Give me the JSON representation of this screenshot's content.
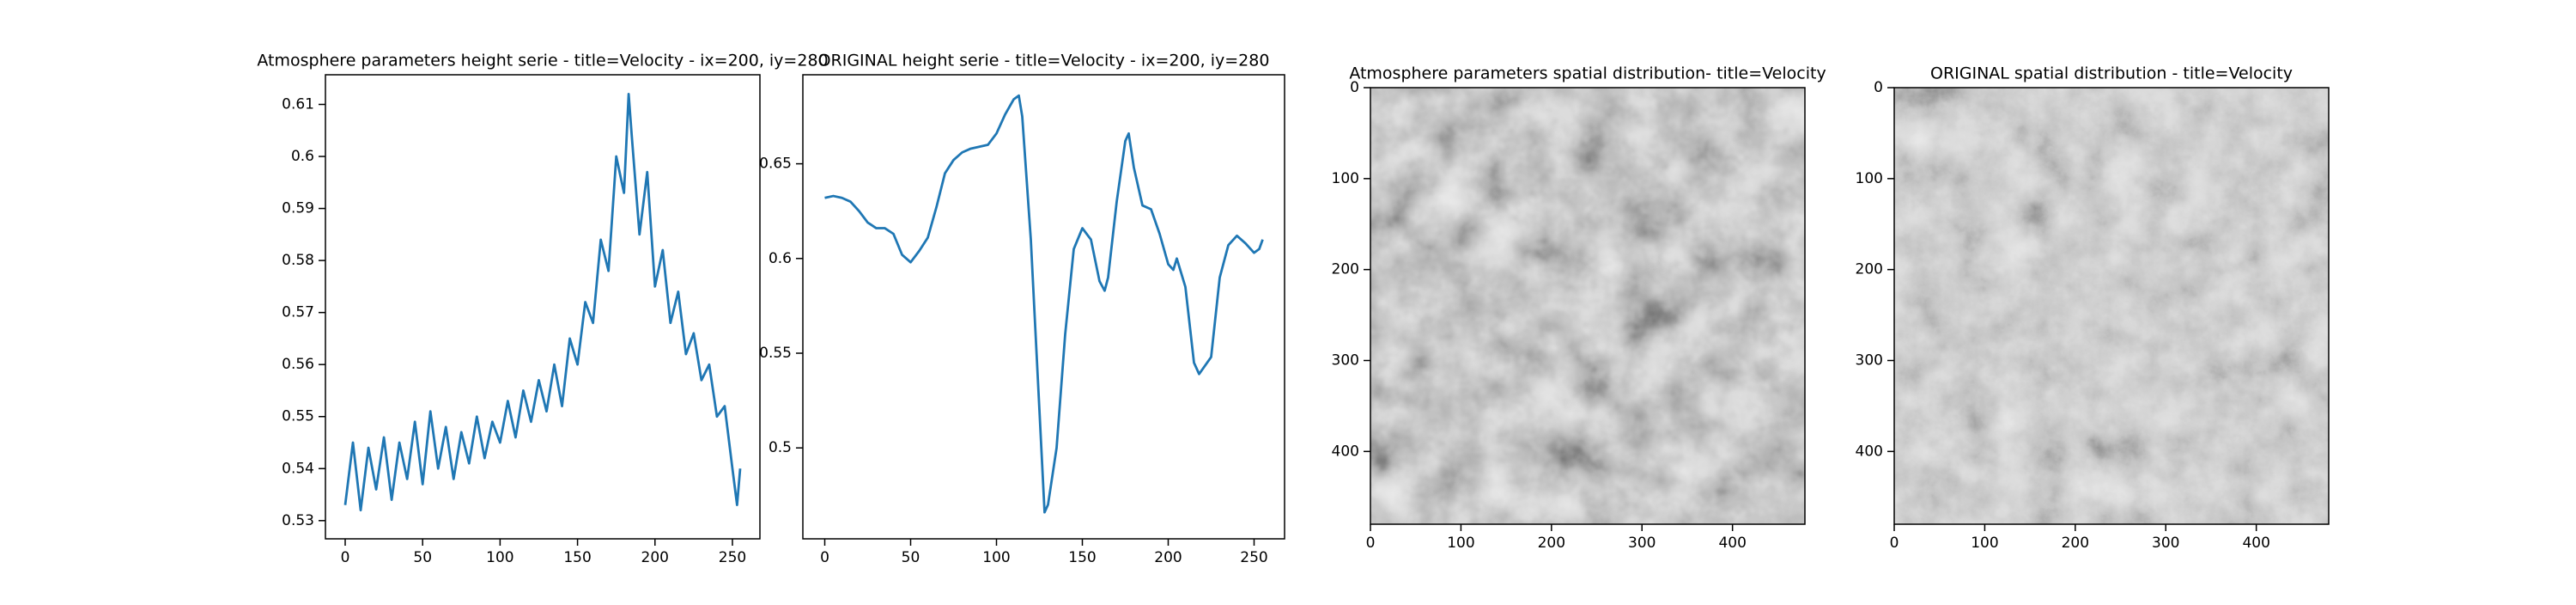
{
  "chart_data": [
    {
      "type": "line",
      "title": "Atmosphere parameters height serie - title=Velocity - ix=200, iy=280",
      "color": "#1f77b4",
      "x": [
        0,
        5,
        10,
        15,
        20,
        25,
        30,
        35,
        40,
        45,
        50,
        55,
        60,
        65,
        70,
        75,
        80,
        85,
        90,
        95,
        100,
        105,
        110,
        115,
        120,
        125,
        130,
        135,
        140,
        145,
        150,
        155,
        160,
        165,
        170,
        175,
        180,
        183,
        185,
        190,
        195,
        200,
        205,
        210,
        215,
        220,
        225,
        230,
        235,
        240,
        245,
        250,
        253,
        255
      ],
      "values": [
        0.533,
        0.545,
        0.532,
        0.544,
        0.536,
        0.546,
        0.534,
        0.545,
        0.538,
        0.549,
        0.537,
        0.551,
        0.54,
        0.548,
        0.538,
        0.547,
        0.541,
        0.55,
        0.542,
        0.549,
        0.545,
        0.553,
        0.546,
        0.555,
        0.549,
        0.557,
        0.551,
        0.56,
        0.552,
        0.565,
        0.56,
        0.572,
        0.568,
        0.584,
        0.578,
        0.6,
        0.593,
        0.612,
        0.604,
        0.585,
        0.597,
        0.575,
        0.582,
        0.568,
        0.574,
        0.562,
        0.566,
        0.557,
        0.56,
        0.55,
        0.552,
        0.54,
        0.533,
        0.54
      ],
      "xlim": [
        -12.75,
        267.75
      ],
      "xticks": [
        0,
        50,
        100,
        150,
        200,
        250
      ],
      "ylim": [
        0.5265,
        0.6157
      ],
      "yticks": [
        0.53,
        0.54,
        0.55,
        0.56,
        0.57,
        0.58,
        0.59,
        0.6,
        0.61
      ]
    },
    {
      "type": "line",
      "title": "ORIGINAL height serie - title=Velocity - ix=200, iy=280",
      "color": "#1f77b4",
      "x": [
        0,
        5,
        10,
        15,
        20,
        25,
        30,
        35,
        40,
        45,
        50,
        55,
        60,
        65,
        70,
        75,
        80,
        85,
        90,
        95,
        100,
        105,
        110,
        113,
        115,
        120,
        125,
        128,
        130,
        135,
        140,
        145,
        150,
        155,
        160,
        163,
        165,
        170,
        175,
        177,
        180,
        185,
        190,
        195,
        200,
        203,
        205,
        210,
        215,
        218,
        225,
        230,
        235,
        240,
        245,
        250,
        253,
        255
      ],
      "values": [
        0.632,
        0.633,
        0.632,
        0.63,
        0.625,
        0.619,
        0.616,
        0.616,
        0.613,
        0.602,
        0.598,
        0.604,
        0.611,
        0.627,
        0.645,
        0.652,
        0.656,
        0.658,
        0.659,
        0.66,
        0.666,
        0.676,
        0.684,
        0.686,
        0.675,
        0.61,
        0.52,
        0.466,
        0.47,
        0.5,
        0.56,
        0.605,
        0.616,
        0.61,
        0.588,
        0.583,
        0.59,
        0.63,
        0.662,
        0.666,
        0.648,
        0.628,
        0.626,
        0.613,
        0.597,
        0.594,
        0.6,
        0.585,
        0.545,
        0.539,
        0.548,
        0.59,
        0.607,
        0.612,
        0.608,
        0.603,
        0.605,
        0.61
      ],
      "xlim": [
        -12.75,
        267.75
      ],
      "xticks": [
        0,
        50,
        100,
        150,
        200,
        250
      ],
      "ylim": [
        0.452,
        0.697
      ],
      "yticks": [
        0.5,
        0.55,
        0.6,
        0.65
      ]
    },
    {
      "type": "image",
      "title": "Atmosphere parameters spatial distribution- title=Velocity",
      "xlim": [
        0,
        480
      ],
      "xticks": [
        0,
        100,
        200,
        300,
        400
      ],
      "ylim": [
        480,
        0
      ],
      "yticks": [
        0,
        100,
        200,
        300,
        400
      ]
    },
    {
      "type": "image",
      "title": "ORIGINAL spatial distribution - title=Velocity",
      "xlim": [
        0,
        480
      ],
      "xticks": [
        0,
        100,
        200,
        300,
        400
      ],
      "ylim": [
        480,
        0
      ],
      "yticks": [
        0,
        100,
        200,
        300,
        400
      ]
    }
  ]
}
